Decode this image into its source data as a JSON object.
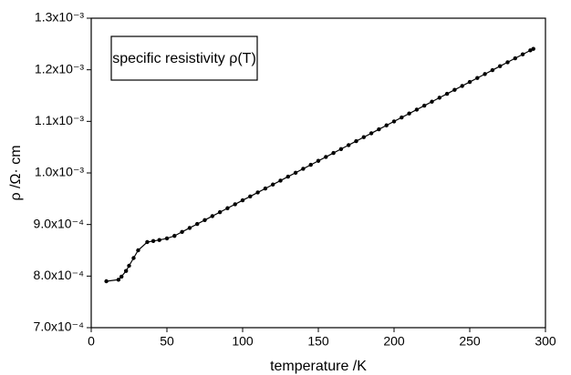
{
  "chart_data": {
    "type": "line",
    "x_label": "temperature /K",
    "y_label": "ρ /Ω· cm",
    "annotation": "specific resistivity ρ(T)",
    "x": [
      10,
      18,
      20,
      23,
      25,
      28,
      31,
      37,
      41,
      45,
      50,
      55,
      60,
      65,
      70,
      75,
      80,
      85,
      90,
      95,
      100,
      105,
      110,
      115,
      120,
      125,
      130,
      135,
      140,
      145,
      150,
      155,
      160,
      165,
      170,
      175,
      180,
      185,
      190,
      195,
      200,
      205,
      210,
      215,
      220,
      225,
      230,
      235,
      240,
      245,
      250,
      255,
      260,
      265,
      270,
      275,
      280,
      285,
      290,
      292
    ],
    "series": [
      {
        "color": "#000000",
        "values": [
          0.00079,
          0.000793,
          0.000799,
          0.00081,
          0.00082,
          0.000835,
          0.00085,
          0.000866,
          0.000868,
          0.00087,
          0.000873,
          0.000878,
          0.0008857,
          0.0008933,
          0.000901,
          0.0009086,
          0.0009163,
          0.0009239,
          0.0009316,
          0.0009392,
          0.0009469,
          0.0009545,
          0.0009622,
          0.0009698,
          0.0009775,
          0.0009851,
          0.0009928,
          0.0010004,
          0.0010081,
          0.0010157,
          0.0010234,
          0.001031,
          0.0010387,
          0.0010463,
          0.001054,
          0.0010616,
          0.0010693,
          0.0010769,
          0.0010846,
          0.0010922,
          0.0010999,
          0.0011075,
          0.0011152,
          0.0011228,
          0.0011305,
          0.0011381,
          0.0011458,
          0.0011534,
          0.0011611,
          0.0011687,
          0.0011764,
          0.001184,
          0.0011917,
          0.0011993,
          0.001207,
          0.0012146,
          0.0012223,
          0.0012299,
          0.0012376,
          0.0012406
        ]
      }
    ],
    "xlim": [
      0,
      300
    ],
    "xticks": [
      0,
      50,
      100,
      150,
      200,
      250,
      300
    ],
    "ylim": [
      0.0007,
      0.0013
    ],
    "yticks": [
      {
        "value": 0.0007,
        "label": "7.0x10⁻⁴"
      },
      {
        "value": 0.0008,
        "label": "8.0x10⁻⁴"
      },
      {
        "value": 0.0009,
        "label": "9.0x10⁻⁴"
      },
      {
        "value": 0.001,
        "label": "1.0x10⁻³"
      },
      {
        "value": 0.0011,
        "label": "1.1x10⁻³"
      },
      {
        "value": 0.0012,
        "label": "1.2x10⁻³"
      },
      {
        "value": 0.0013,
        "label": "1.3x10⁻³"
      }
    ]
  }
}
